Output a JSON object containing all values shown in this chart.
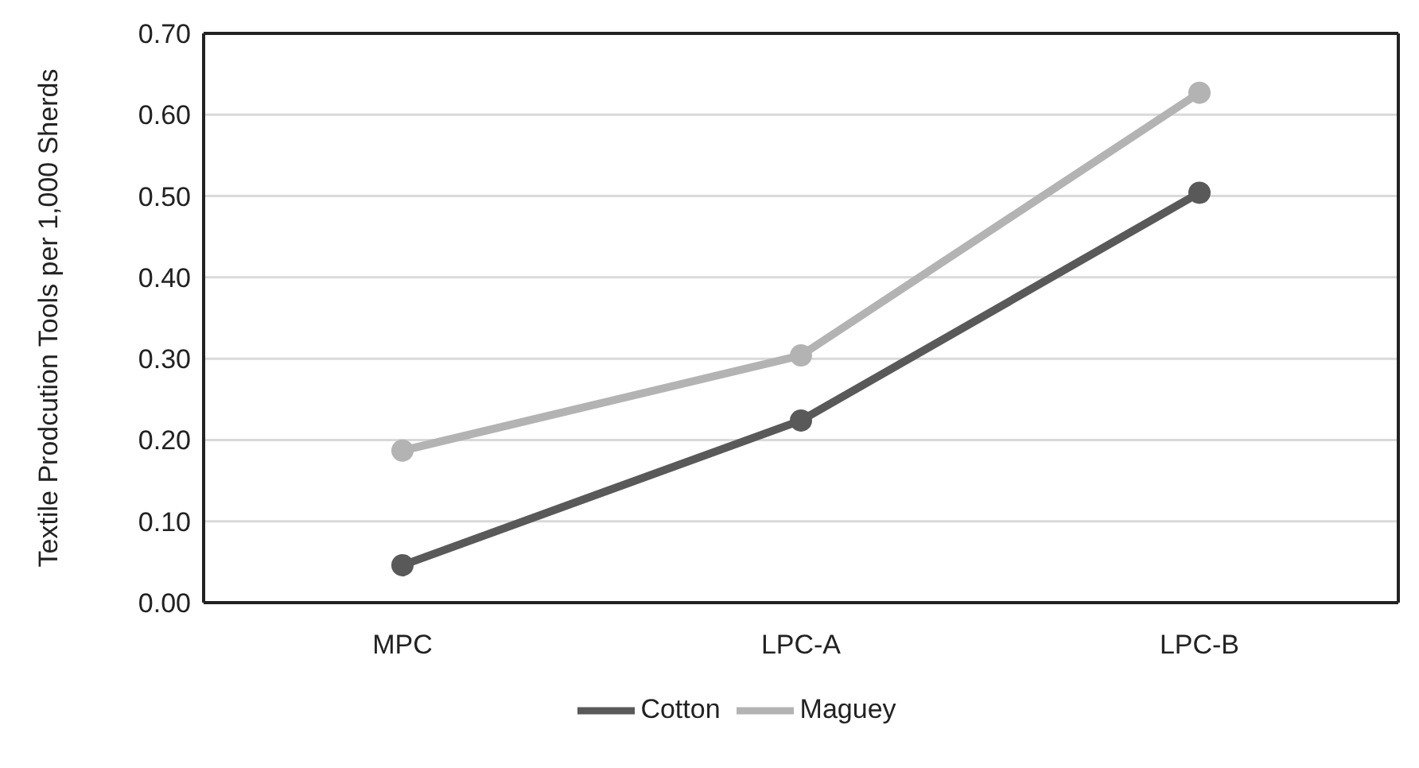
{
  "chart_data": {
    "type": "line",
    "ylabel": "Textile Prodcution Tools per 1,000 Sherds",
    "categories": [
      "MPC",
      "LPC-A",
      "LPC-B"
    ],
    "series": [
      {
        "name": "Cotton",
        "color": "#595959",
        "values": [
          0.046,
          0.224,
          0.504
        ]
      },
      {
        "name": "Maguey",
        "color": "#b3b3b3",
        "values": [
          0.187,
          0.304,
          0.627
        ]
      }
    ],
    "ylim": [
      0,
      0.7
    ],
    "yticks": [
      {
        "value": 0,
        "label": "0.00"
      },
      {
        "value": 0.1,
        "label": "0.10"
      },
      {
        "value": 0.2,
        "label": "0.20"
      },
      {
        "value": 0.3,
        "label": "0.30"
      },
      {
        "value": 0.4,
        "label": "0.40"
      },
      {
        "value": 0.5,
        "label": "0.50"
      },
      {
        "value": 0.6,
        "label": "0.60"
      },
      {
        "value": 0.7,
        "label": "0.70"
      }
    ],
    "grid": "y",
    "legend": "bottom",
    "marker": "circle",
    "line_style": "solid"
  }
}
